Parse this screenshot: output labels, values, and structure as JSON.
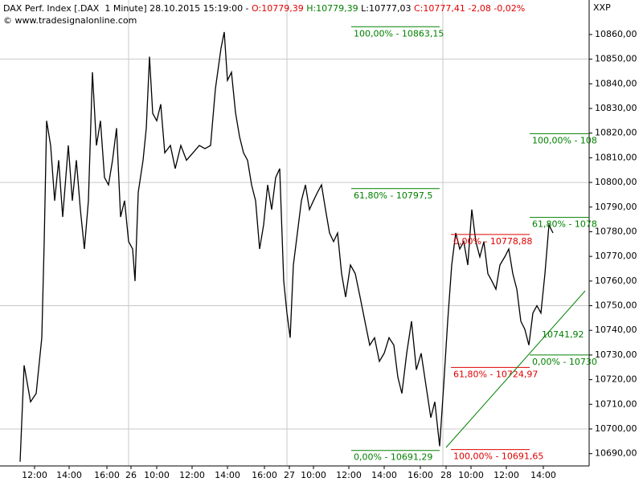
{
  "header": {
    "title": "DAX Perf. Index [.DAX  1 Minute] 28.10.2015 15:19:00 -",
    "open": "O:10779,39",
    "high": "H:10779,39",
    "low": "L:10777,03",
    "close": "C:10777,41 -2,08 -0,02%",
    "copyright": "© www.tradesignalonline.com",
    "symbol": "XXP"
  },
  "chart_data": {
    "type": "line",
    "color": "#000000",
    "x": [
      25,
      30,
      38,
      45,
      52,
      55,
      58,
      63,
      68,
      73,
      78,
      85,
      90,
      95,
      100,
      105,
      110,
      115,
      120,
      125,
      130,
      135,
      140,
      145,
      150,
      155,
      160,
      165,
      168,
      172,
      178,
      182,
      186,
      190,
      195,
      200,
      205,
      212,
      218,
      225,
      232,
      240,
      248,
      255,
      262,
      268,
      275,
      279,
      283,
      288,
      293,
      298,
      303,
      308,
      313,
      318,
      323,
      328,
      333,
      338,
      343,
      348,
      353,
      357,
      361,
      365,
      370,
      375,
      380,
      385,
      390,
      395,
      400,
      405,
      410,
      415,
      420,
      425,
      430,
      436,
      442,
      448,
      454,
      460,
      466,
      472,
      478,
      484,
      490,
      495,
      500,
      506,
      512,
      518,
      524,
      530,
      536,
      541,
      547,
      552,
      557,
      562,
      567,
      572,
      577,
      582,
      587,
      592,
      597,
      602,
      607,
      612,
      617,
      622,
      628,
      633,
      638,
      643,
      648,
      653,
      658,
      663,
      668,
      673,
      678,
      683,
      688
    ],
    "values": [
      10686.7,
      10725.8,
      10711,
      10714.4,
      10737,
      10776,
      10825,
      10815,
      10792.6,
      10809,
      10786,
      10815,
      10792.6,
      10809,
      10789,
      10773,
      10792.6,
      10844.7,
      10815,
      10825,
      10802,
      10799,
      10809,
      10822,
      10786,
      10792.6,
      10776,
      10773,
      10760,
      10796,
      10809,
      10822,
      10851,
      10828,
      10825,
      10831.7,
      10812,
      10815,
      10805.6,
      10815,
      10809,
      10812,
      10815,
      10813.7,
      10815,
      10838,
      10854.5,
      10861,
      10841.4,
      10844.7,
      10828.4,
      10818.6,
      10812,
      10809,
      10799,
      10792.6,
      10773,
      10782.8,
      10799,
      10789,
      10802,
      10805.6,
      10760,
      10747,
      10737,
      10766.5,
      10779.5,
      10792.6,
      10799,
      10789,
      10792.6,
      10796,
      10799,
      10789,
      10779.5,
      10776,
      10779.5,
      10763,
      10753.5,
      10766.5,
      10763,
      10753.5,
      10743.7,
      10734,
      10737,
      10727.4,
      10730.7,
      10737,
      10734,
      10721,
      10714.4,
      10730.7,
      10743.7,
      10724,
      10730.7,
      10717.6,
      10704.6,
      10711,
      10693,
      10717.6,
      10743.7,
      10766.5,
      10779.5,
      10773,
      10776,
      10766.5,
      10789,
      10776,
      10769.8,
      10776,
      10763,
      10760,
      10756.7,
      10766.5,
      10769.8,
      10773,
      10763,
      10756.7,
      10743.7,
      10740.4,
      10734,
      10747,
      10750,
      10747,
      10763,
      10782.8,
      10779.5
    ],
    "xlim": [
      0,
      733
    ],
    "ylim": [
      10685,
      10874
    ],
    "yticks": [
      {
        "value": 10690,
        "label": "10690,00"
      },
      {
        "value": 10700,
        "label": "10700,00"
      },
      {
        "value": 10710,
        "label": "10710,00"
      },
      {
        "value": 10720,
        "label": "10720,00"
      },
      {
        "value": 10730,
        "label": "10730,00"
      },
      {
        "value": 10740,
        "label": "10740,00"
      },
      {
        "value": 10750,
        "label": "10750,00"
      },
      {
        "value": 10760,
        "label": "10760,00"
      },
      {
        "value": 10770,
        "label": "10770,00"
      },
      {
        "value": 10780,
        "label": "10780,00"
      },
      {
        "value": 10790,
        "label": "10790,00"
      },
      {
        "value": 10800,
        "label": "10800,00"
      },
      {
        "value": 10810,
        "label": "10810,00"
      },
      {
        "value": 10820,
        "label": "10820,00"
      },
      {
        "value": 10830,
        "label": "10830,00"
      },
      {
        "value": 10840,
        "label": "10840,00"
      },
      {
        "value": 10850,
        "label": "10850,00"
      },
      {
        "value": 10860,
        "label": "10860,00"
      }
    ],
    "xticks": [
      {
        "value": 43,
        "label": "12:00"
      },
      {
        "value": 86,
        "label": "14:00"
      },
      {
        "value": 133,
        "label": "16:00"
      },
      {
        "value": 163,
        "label": "26"
      },
      {
        "value": 195,
        "label": "10:00"
      },
      {
        "value": 239,
        "label": "12:00"
      },
      {
        "value": 283,
        "label": "14:00"
      },
      {
        "value": 329,
        "label": "16:00"
      },
      {
        "value": 360,
        "label": "27"
      },
      {
        "value": 390,
        "label": "10:00"
      },
      {
        "value": 434,
        "label": "12:00"
      },
      {
        "value": 478,
        "label": "14:00"
      },
      {
        "value": 523,
        "label": "16:00"
      },
      {
        "value": 555,
        "label": "28"
      },
      {
        "value": 586,
        "label": "10:00"
      },
      {
        "value": 630,
        "label": "12:00"
      },
      {
        "value": 676,
        "label": "14:00"
      }
    ],
    "ygrid": [
      10700,
      10750,
      10800,
      10850
    ],
    "xgrid": [
      160,
      357,
      551
    ],
    "grid_color": "#c8c8c8",
    "annotations": [
      {
        "text": "100,00% - 10863,15",
        "value": 10863.15,
        "x": [
          437,
          547
        ],
        "color": "#008000"
      },
      {
        "text": "61,80% - 10797,5",
        "value": 10797.5,
        "x": [
          437,
          547
        ],
        "color": "#008000"
      },
      {
        "text": "0,00% - 10691,29",
        "value": 10691.29,
        "x": [
          437,
          547
        ],
        "color": "#008000"
      },
      {
        "text": "100,00% - 108",
        "value": 10819.8,
        "x": [
          659,
          733
        ],
        "color": "#008000"
      },
      {
        "text": "61,80% - 1078",
        "value": 10785.8,
        "x": [
          659,
          733
        ],
        "color": "#008000"
      },
      {
        "text": "0,00% - 10730",
        "value": 10730,
        "x": [
          659,
          733
        ],
        "color": "#008000"
      },
      {
        "text": "0,00% - 10778,88",
        "value": 10778.88,
        "x": [
          561,
          659
        ],
        "color": "#e00000"
      },
      {
        "text": "61,80% - 10724,97",
        "value": 10724.97,
        "x": [
          561,
          659
        ],
        "color": "#e00000"
      },
      {
        "text": "100,00% - 10691,65",
        "value": 10691.65,
        "x": [
          561,
          659
        ],
        "color": "#e00000"
      }
    ],
    "trendline": {
      "label": "10741,92",
      "x": [
        555,
        728
      ],
      "values": [
        10692.5,
        10756
      ],
      "color": "#008000"
    }
  }
}
